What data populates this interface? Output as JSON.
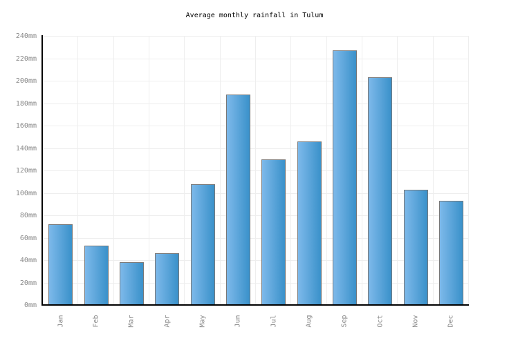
{
  "chart_data": {
    "type": "bar",
    "title": "Average monthly rainfall in Tulum",
    "categories": [
      "Jan",
      "Feb",
      "Mar",
      "Apr",
      "May",
      "Jun",
      "Jul",
      "Aug",
      "Sep",
      "Oct",
      "Nov",
      "Dec"
    ],
    "values": [
      72,
      53,
      38,
      46,
      108,
      188,
      130,
      146,
      227,
      203,
      103,
      93
    ],
    "unit": "mm",
    "xlabel": "",
    "ylabel": "",
    "ylim": [
      0,
      240
    ],
    "ytick_step": 20,
    "ytick_labels": [
      "0mm",
      "20mm",
      "40mm",
      "60mm",
      "80mm",
      "100mm",
      "120mm",
      "140mm",
      "160mm",
      "180mm",
      "200mm",
      "220mm",
      "240mm"
    ],
    "grid": {
      "horizontal": true,
      "vertical": true
    },
    "legend": "none",
    "colors": {
      "bar_gradient_start": "#7db9ea",
      "bar_gradient_end": "#3a91ca",
      "bar_border": "#777777",
      "axis": "#000000",
      "gridline": "#eeeeee",
      "tick_label": "#888888",
      "title": "#000000",
      "background": "#ffffff"
    }
  }
}
